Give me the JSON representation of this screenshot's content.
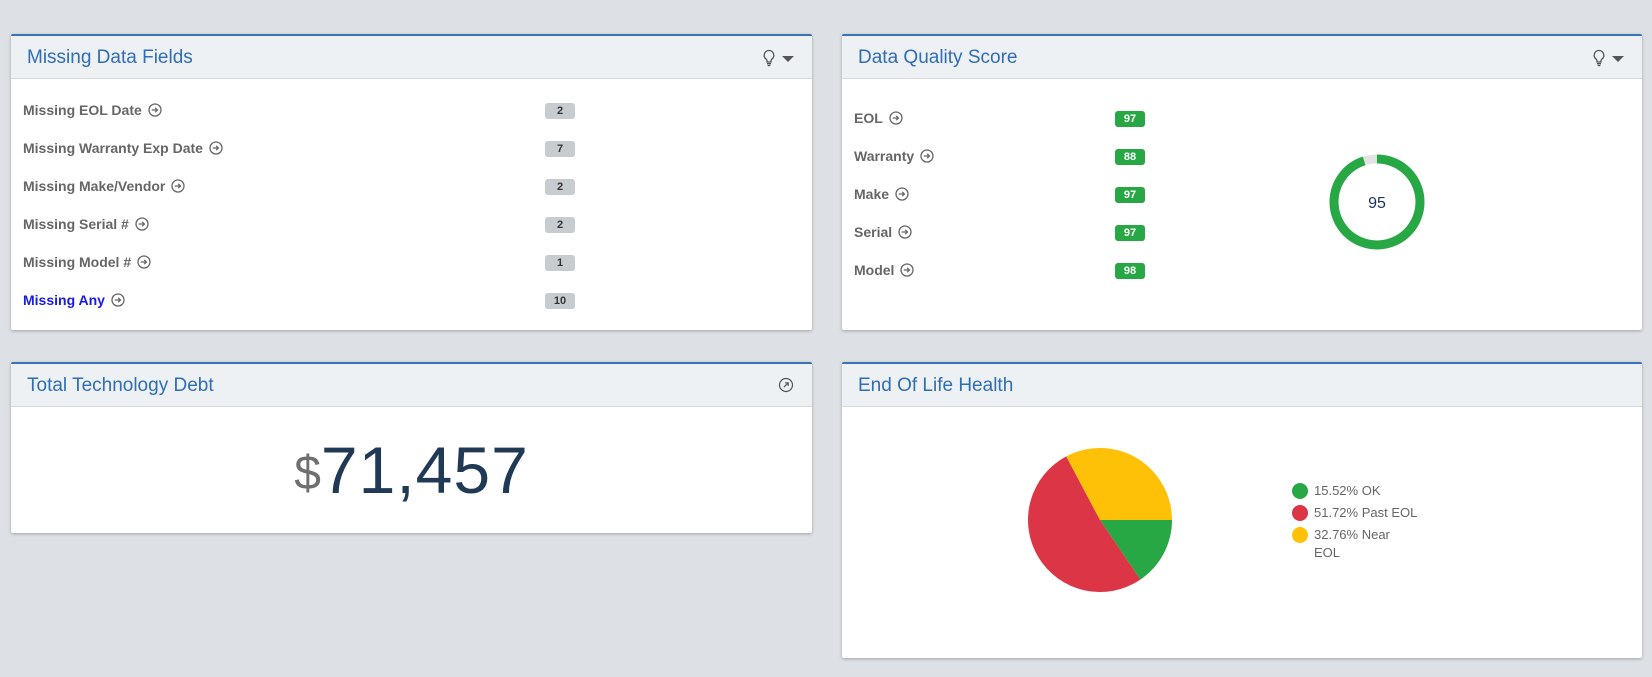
{
  "missing_data": {
    "title": "Missing Data Fields",
    "rows": [
      {
        "label": "Missing EOL Date",
        "count": "2"
      },
      {
        "label": "Missing Warranty Exp Date",
        "count": "7"
      },
      {
        "label": "Missing Make/Vendor",
        "count": "2"
      },
      {
        "label": "Missing Serial #",
        "count": "2"
      },
      {
        "label": "Missing Model #",
        "count": "1"
      },
      {
        "label": "Missing Any",
        "count": "10"
      }
    ]
  },
  "quality": {
    "title": "Data Quality Score",
    "rows": [
      {
        "label": "EOL",
        "score": "97"
      },
      {
        "label": "Warranty",
        "score": "88"
      },
      {
        "label": "Make",
        "score": "97"
      },
      {
        "label": "Serial",
        "score": "97"
      },
      {
        "label": "Model",
        "score": "98"
      }
    ],
    "overall": "95",
    "overall_value": 95,
    "ring_color": "#28a745",
    "ring_track_color": "#e3e3e3"
  },
  "debt": {
    "title": "Total Technology Debt",
    "currency": "$",
    "amount": "71,457"
  },
  "eol": {
    "title": "End Of Life Health",
    "legend": [
      {
        "label": "15.52% OK",
        "color": "#28a745"
      },
      {
        "label": "51.72% Past EOL",
        "color": "#dc3545"
      },
      {
        "label": "32.76% Near EOL",
        "color": "#ffc107"
      }
    ]
  },
  "chart_data": {
    "type": "pie",
    "categories": [
      "OK",
      "Past EOL",
      "Near EOL"
    ],
    "values": [
      15.52,
      51.72,
      32.76
    ],
    "colors": [
      "#28a745",
      "#dc3545",
      "#ffc107"
    ],
    "legend_position": "right"
  }
}
